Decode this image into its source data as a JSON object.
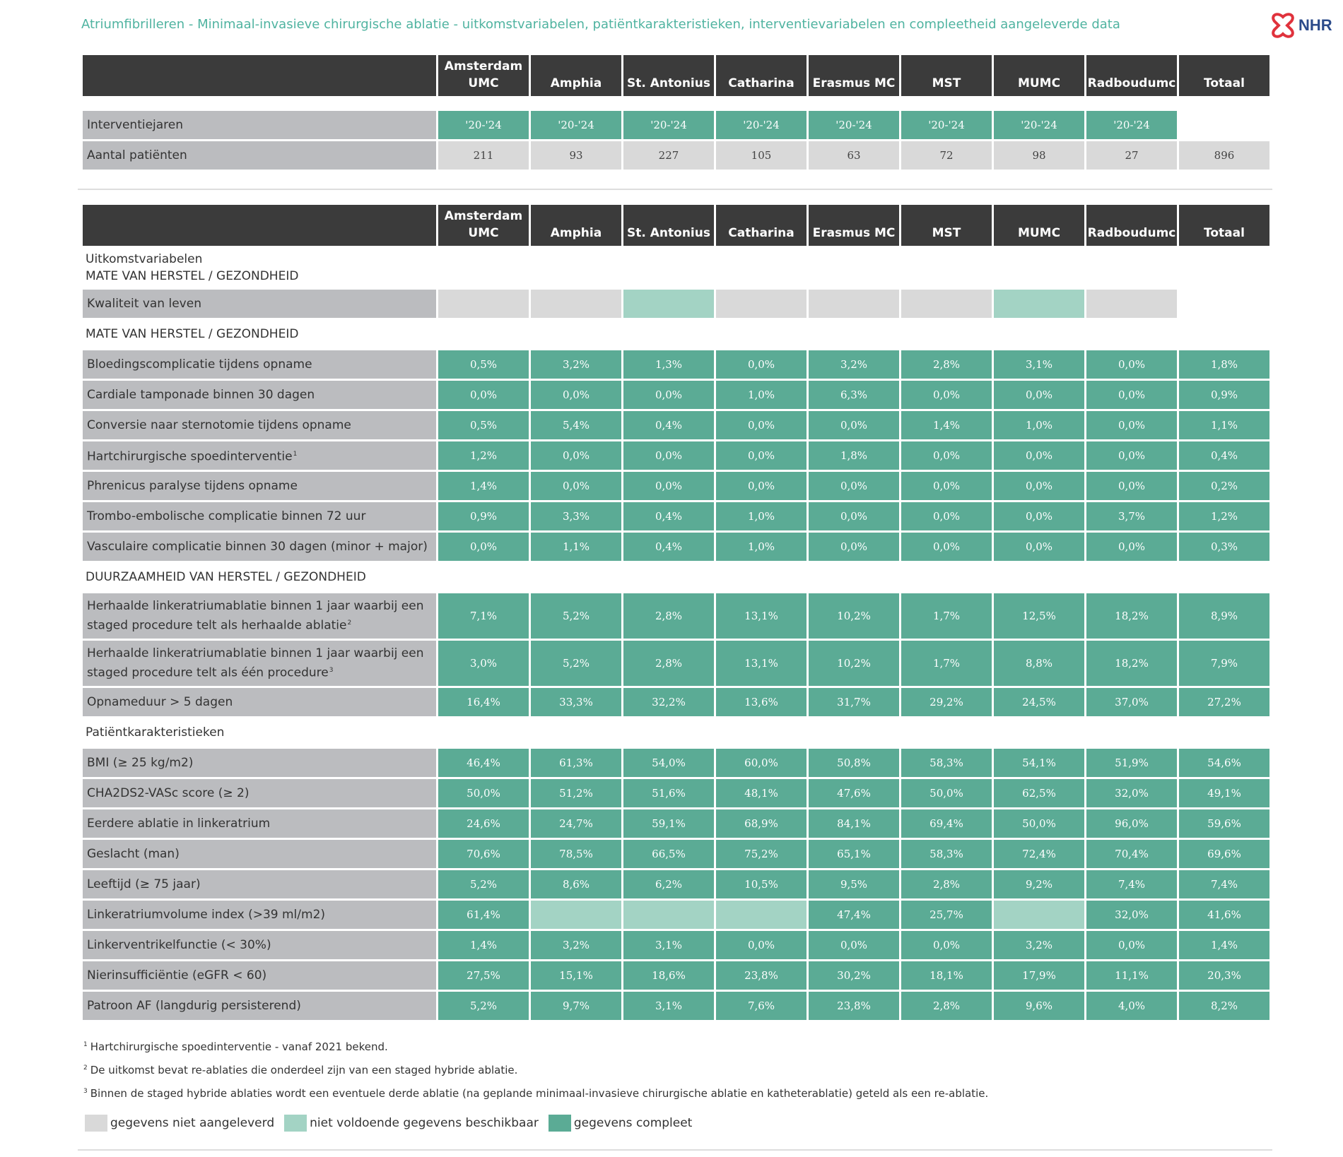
{
  "header": {
    "title": "Atriumfibrilleren - Minimaal-invasieve chirurgische ablatie - uitkomstvariabelen, patiëntkarakteristieken, interventievariabelen en compleetheid aangeleverde data",
    "logo": "NHR"
  },
  "columns": [
    "Amsterdam UMC",
    "Amphia",
    "St. Antonius",
    "Catharina",
    "Erasmus MC",
    "MST",
    "MUMC",
    "Radboudumc",
    "Totaal"
  ],
  "top_rows": [
    {
      "label": "Interventiejaren",
      "color": "#5bab95",
      "values": [
        "'20-'24",
        "'20-'24",
        "'20-'24",
        "'20-'24",
        "'20-'24",
        "'20-'24",
        "'20-'24",
        "'20-'24"
      ]
    },
    {
      "label": "Aantal patiënten",
      "color": "#d9d9d9",
      "values": [
        "211",
        "93",
        "227",
        "105",
        "63",
        "72",
        "98",
        "27",
        "896"
      ]
    }
  ],
  "sections": [
    {
      "lines": [
        "Uitkomstvariabelen",
        "MATE VAN HERSTEL / GEZONDHEID"
      ],
      "rows": [
        {
          "label": "Kwaliteit van leven",
          "values": [
            null,
            null,
            null,
            null,
            null,
            null,
            null,
            null
          ],
          "colors": [
            "#d9d9d9",
            "#d9d9d9",
            "#a3d3c4",
            "#d9d9d9",
            "#d9d9d9",
            "#d9d9d9",
            "#a3d3c4",
            "#d9d9d9"
          ]
        }
      ]
    },
    {
      "lines": [
        "MATE VAN HERSTEL / GEZONDHEID"
      ],
      "rows": [
        {
          "label": "Bloedingscomplicatie tijdens opname",
          "values": [
            "0,5%",
            "3,2%",
            "1,3%",
            "0,0%",
            "3,2%",
            "2,8%",
            "3,1%",
            "0,0%",
            "1,8%"
          ]
        },
        {
          "label": "Cardiale tamponade binnen 30 dagen",
          "values": [
            "0,0%",
            "0,0%",
            "0,0%",
            "1,0%",
            "6,3%",
            "0,0%",
            "0,0%",
            "0,0%",
            "0,9%"
          ]
        },
        {
          "label": "Conversie naar sternotomie tijdens opname",
          "values": [
            "0,5%",
            "5,4%",
            "0,4%",
            "0,0%",
            "0,0%",
            "1,4%",
            "1,0%",
            "0,0%",
            "1,1%"
          ]
        },
        {
          "label": "Hartchirurgische spoedinterventie",
          "note": "1",
          "values": [
            "1,2%",
            "0,0%",
            "0,0%",
            "0,0%",
            "1,8%",
            "0,0%",
            "0,0%",
            "0,0%",
            "0,4%"
          ]
        },
        {
          "label": "Phrenicus paralyse tijdens opname",
          "values": [
            "1,4%",
            "0,0%",
            "0,0%",
            "0,0%",
            "0,0%",
            "0,0%",
            "0,0%",
            "0,0%",
            "0,2%"
          ]
        },
        {
          "label": "Trombo-embolische complicatie binnen 72 uur",
          "values": [
            "0,9%",
            "3,3%",
            "0,4%",
            "1,0%",
            "0,0%",
            "0,0%",
            "0,0%",
            "3,7%",
            "1,2%"
          ]
        },
        {
          "label": "Vasculaire complicatie binnen 30 dagen (minor + major)",
          "values": [
            "0,0%",
            "1,1%",
            "0,4%",
            "1,0%",
            "0,0%",
            "0,0%",
            "0,0%",
            "0,0%",
            "0,3%"
          ]
        }
      ]
    },
    {
      "lines": [
        "DUURZAAMHEID VAN HERSTEL / GEZONDHEID"
      ],
      "rows": [
        {
          "label": "Herhaalde linkeratriumablatie binnen 1 jaar waarbij een staged procedure telt als herhaalde ablatie",
          "note": "2",
          "values": [
            "7,1%",
            "5,2%",
            "2,8%",
            "13,1%",
            "10,2%",
            "1,7%",
            "12,5%",
            "18,2%",
            "8,9%"
          ]
        },
        {
          "label": "Herhaalde linkeratriumablatie binnen 1 jaar waarbij een staged procedure telt als één procedure",
          "note": "3",
          "values": [
            "3,0%",
            "5,2%",
            "2,8%",
            "13,1%",
            "10,2%",
            "1,7%",
            "8,8%",
            "18,2%",
            "7,9%"
          ]
        },
        {
          "label": "Opnameduur > 5 dagen",
          "values": [
            "16,4%",
            "33,3%",
            "32,2%",
            "13,6%",
            "31,7%",
            "29,2%",
            "24,5%",
            "37,0%",
            "27,2%"
          ]
        }
      ]
    },
    {
      "lines": [
        "Patiëntkarakteristieken"
      ],
      "rows": [
        {
          "label": "BMI (≥ 25 kg/m2)",
          "values": [
            "46,4%",
            "61,3%",
            "54,0%",
            "60,0%",
            "50,8%",
            "58,3%",
            "54,1%",
            "51,9%",
            "54,6%"
          ]
        },
        {
          "label": "CHA2DS2-VASc score (≥ 2)",
          "values": [
            "50,0%",
            "51,2%",
            "51,6%",
            "48,1%",
            "47,6%",
            "50,0%",
            "62,5%",
            "32,0%",
            "49,1%"
          ]
        },
        {
          "label": "Eerdere ablatie in linkeratrium",
          "values": [
            "24,6%",
            "24,7%",
            "59,1%",
            "68,9%",
            "84,1%",
            "69,4%",
            "50,0%",
            "96,0%",
            "59,6%"
          ]
        },
        {
          "label": "Geslacht (man)",
          "values": [
            "70,6%",
            "78,5%",
            "66,5%",
            "75,2%",
            "65,1%",
            "58,3%",
            "72,4%",
            "70,4%",
            "69,6%"
          ]
        },
        {
          "label": "Leeftijd (≥ 75 jaar)",
          "values": [
            "5,2%",
            "8,6%",
            "6,2%",
            "10,5%",
            "9,5%",
            "2,8%",
            "9,2%",
            "7,4%",
            "7,4%"
          ]
        },
        {
          "label": "Linkeratriumvolume index (>39 ml/m2)",
          "values": [
            "61,4%",
            null,
            null,
            null,
            "47,4%",
            "25,7%",
            null,
            "32,0%",
            "41,6%"
          ],
          "colors": [
            "#5bab95",
            "#a3d3c4",
            "#a3d3c4",
            "#a3d3c4",
            "#5bab95",
            "#5bab95",
            "#a3d3c4",
            "#5bab95",
            "#5bab95"
          ]
        },
        {
          "label": "Linkerventrikelfunctie (< 30%)",
          "values": [
            "1,4%",
            "3,2%",
            "3,1%",
            "0,0%",
            "0,0%",
            "0,0%",
            "3,2%",
            "0,0%",
            "1,4%"
          ]
        },
        {
          "label": "Nierinsufficiëntie (eGFR < 60)",
          "values": [
            "27,5%",
            "15,1%",
            "18,6%",
            "23,8%",
            "30,2%",
            "18,1%",
            "17,9%",
            "11,1%",
            "20,3%"
          ]
        },
        {
          "label": "Patroon AF (langdurig persisterend)",
          "values": [
            "5,2%",
            "9,7%",
            "3,1%",
            "7,6%",
            "23,8%",
            "2,8%",
            "9,6%",
            "4,0%",
            "8,2%"
          ]
        }
      ]
    }
  ],
  "footnotes": [
    {
      "marker": "1",
      "text": "Hartchirurgische spoedinterventie - vanaf 2021 bekend."
    },
    {
      "marker": "2",
      "text": "De uitkomst bevat re-ablaties die onderdeel zijn van een staged hybride ablatie."
    },
    {
      "marker": "3",
      "text": "Binnen de staged hybride ablaties wordt een eventuele derde ablatie (na geplande minimaal-invasieve chirurgische ablatie en katheterablatie) geteld als een re-ablatie."
    }
  ],
  "legend": [
    {
      "label": "gegevens niet aangeleverd",
      "color": "#d9d9d9"
    },
    {
      "label": "niet voldoende gegevens beschikbaar",
      "color": "#a3d3c4"
    },
    {
      "label": "gegevens compleet",
      "color": "#5bab95"
    }
  ]
}
